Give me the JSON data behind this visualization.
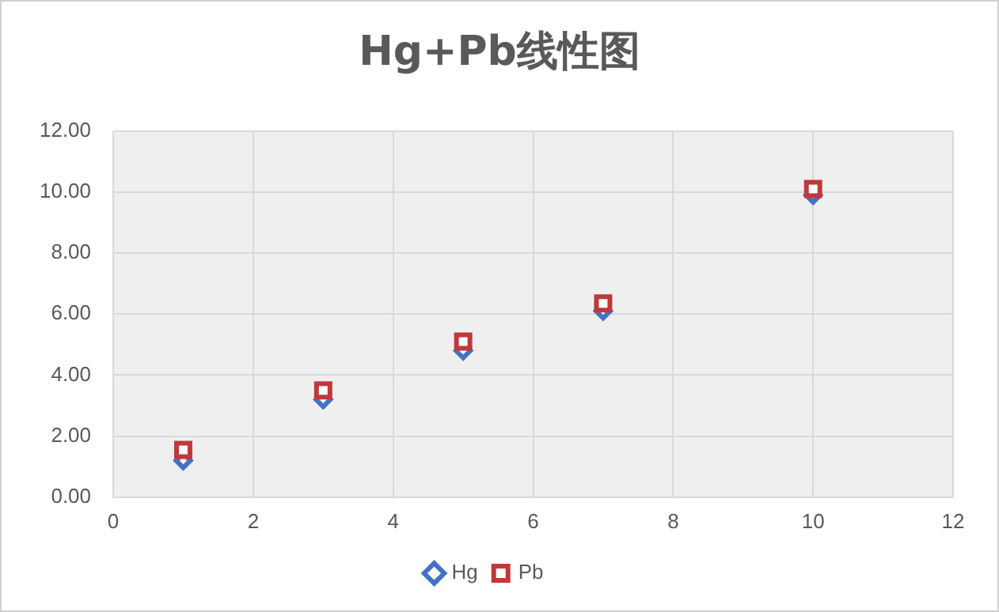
{
  "chart_data": {
    "type": "scatter",
    "title": "Hg+Pb线性图",
    "xlim": [
      0,
      12
    ],
    "xticks": [
      0,
      2,
      4,
      6,
      8,
      10,
      12
    ],
    "ylim": [
      0,
      12
    ],
    "yticks": [
      {
        "value": 0,
        "label": "0.00"
      },
      {
        "value": 2,
        "label": "2.00"
      },
      {
        "value": 4,
        "label": "4.00"
      },
      {
        "value": 6,
        "label": "6.00"
      },
      {
        "value": 8,
        "label": "8.00"
      },
      {
        "value": 10,
        "label": "10.00"
      },
      {
        "value": 12,
        "label": "12.00"
      }
    ],
    "grid": true,
    "legend": "bottom",
    "series": [
      {
        "name": "Hg",
        "color": "#4472c4",
        "marker": "diamond",
        "x": [
          1,
          3,
          5,
          7,
          10
        ],
        "values": [
          1.2,
          3.2,
          4.8,
          6.1,
          9.9
        ]
      },
      {
        "name": "Pb",
        "color": "#c0383a",
        "marker": "square",
        "x": [
          1,
          3,
          5,
          7,
          10
        ],
        "values": [
          1.55,
          3.5,
          5.1,
          6.35,
          10.1
        ]
      }
    ]
  }
}
